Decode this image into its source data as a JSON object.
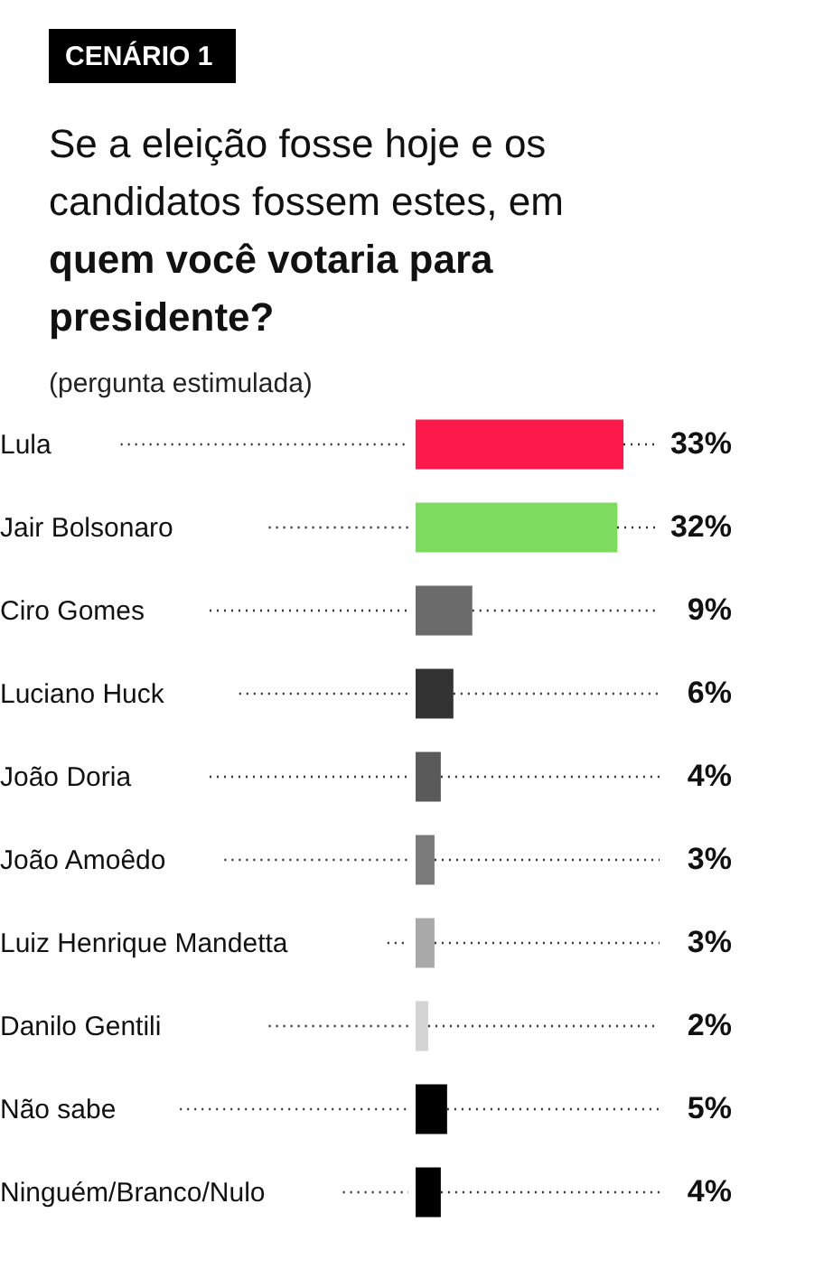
{
  "chart_data": {
    "type": "bar",
    "orientation": "horizontal",
    "title": "CENÁRIO 1",
    "subtitle": "Se a eleição fosse hoje e os candidatos fossem estes, em quem você votaria para presidente?",
    "annotations": [
      "(pergunta estimulada)"
    ],
    "categories": [
      "Lula",
      "Jair Bolsonaro",
      "Ciro Gomes",
      "Luciano Huck",
      "João Doria",
      "João Amoêdo",
      "Luiz Henrique Mandetta",
      "Danilo Gentili",
      "Não sabe",
      "Ninguém/Branco/Nulo"
    ],
    "values": [
      33,
      32,
      9,
      6,
      4,
      3,
      3,
      2,
      5,
      4
    ],
    "value_labels": [
      "33%",
      "32%",
      "9%",
      "6%",
      "4%",
      "3%",
      "3%",
      "2%",
      "5%",
      "4%"
    ],
    "colors": [
      "#fb1a4a",
      "#7ddc5f",
      "#6b6b6b",
      "#333333",
      "#5a5a5a",
      "#7a7a7a",
      "#a9a9a9",
      "#d4d4d4",
      "#000000",
      "#000000"
    ]
  }
}
